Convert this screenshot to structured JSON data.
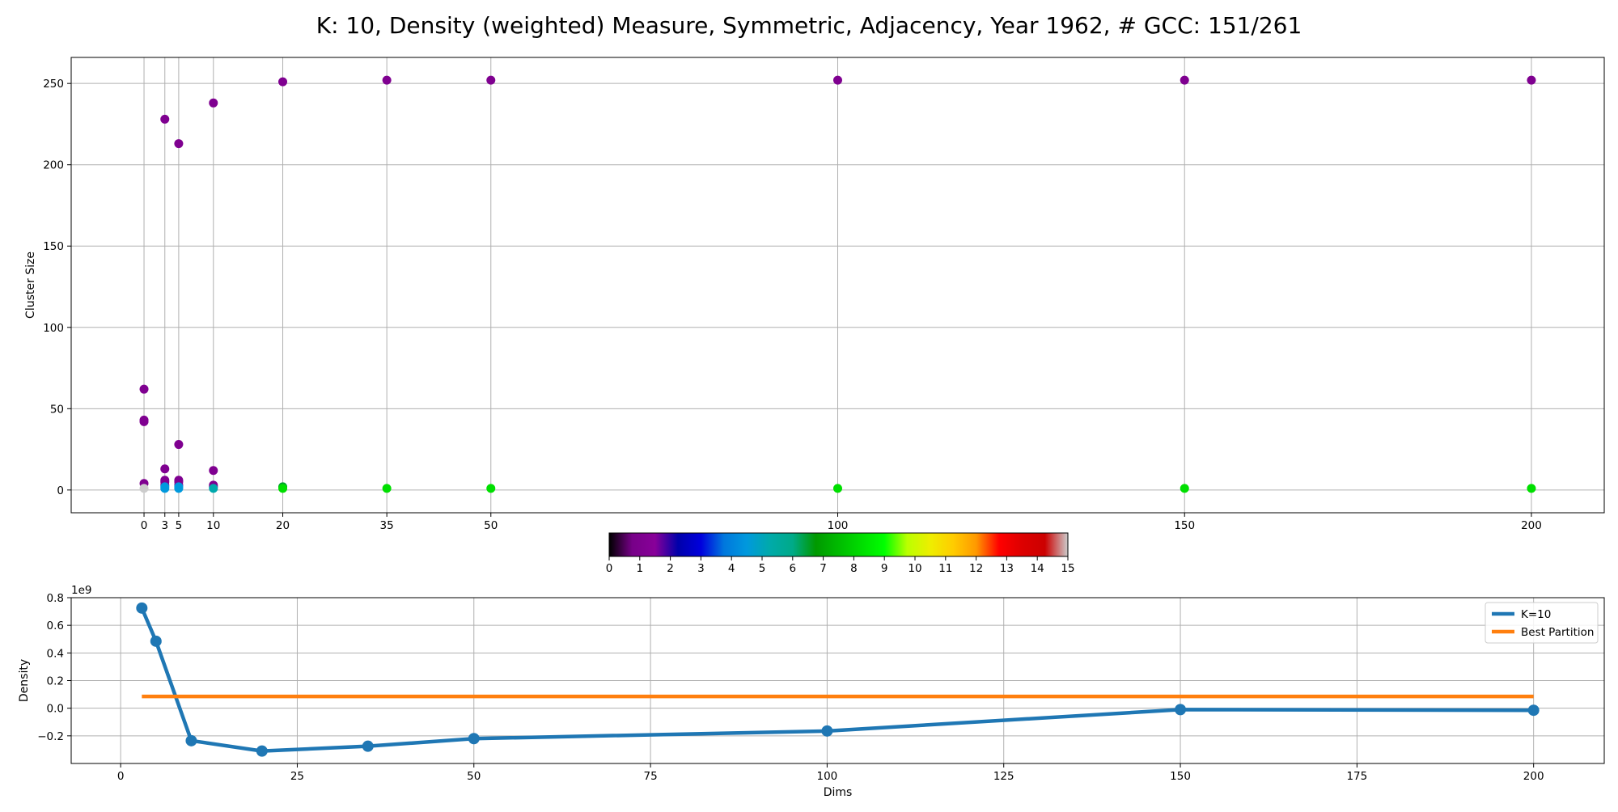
{
  "figure": {
    "title": "K: 10, Density (weighted) Measure, Symmetric, Adjacency, Year 1962, # GCC: 151/261"
  },
  "chart_data": [
    {
      "type": "scatter",
      "ylabel": "Cluster Size",
      "xlabel": "",
      "x_positions": [
        0,
        3,
        5,
        10,
        20,
        35,
        50,
        100,
        150,
        200
      ],
      "xticks": [
        "0",
        "3",
        "5",
        "10",
        "20",
        "35",
        "50",
        "100",
        "150",
        "200"
      ],
      "yticks": [
        0,
        50,
        100,
        150,
        200,
        250
      ],
      "ylim": [
        -14,
        266
      ],
      "xlim": [
        -10.5,
        210.5
      ],
      "grid": true,
      "points": [
        {
          "x": 0,
          "y": 62,
          "c": 1.1
        },
        {
          "x": 0,
          "y": 43,
          "c": 1.1
        },
        {
          "x": 0,
          "y": 42,
          "c": 1.1
        },
        {
          "x": 0,
          "y": 4,
          "c": 1.1
        },
        {
          "x": 0,
          "y": 1,
          "c": 15
        },
        {
          "x": 3,
          "y": 228,
          "c": 1.1
        },
        {
          "x": 3,
          "y": 13,
          "c": 1.1
        },
        {
          "x": 3,
          "y": 6,
          "c": 1.1
        },
        {
          "x": 3,
          "y": 5,
          "c": 1.1
        },
        {
          "x": 3,
          "y": 3,
          "c": 1.1
        },
        {
          "x": 3,
          "y": 2,
          "c": 4.5
        },
        {
          "x": 3,
          "y": 1,
          "c": 4.5
        },
        {
          "x": 5,
          "y": 213,
          "c": 1.1
        },
        {
          "x": 5,
          "y": 28,
          "c": 1.1
        },
        {
          "x": 5,
          "y": 6,
          "c": 1.1
        },
        {
          "x": 5,
          "y": 5,
          "c": 1.1
        },
        {
          "x": 5,
          "y": 3,
          "c": 1.1
        },
        {
          "x": 5,
          "y": 2,
          "c": 4.5
        },
        {
          "x": 5,
          "y": 1,
          "c": 4.5
        },
        {
          "x": 10,
          "y": 238,
          "c": 1.1
        },
        {
          "x": 10,
          "y": 12,
          "c": 1.1
        },
        {
          "x": 10,
          "y": 3,
          "c": 1.1
        },
        {
          "x": 10,
          "y": 2,
          "c": 1.1
        },
        {
          "x": 10,
          "y": 1,
          "c": 5.2
        },
        {
          "x": 20,
          "y": 251,
          "c": 1.1
        },
        {
          "x": 20,
          "y": 2,
          "c": 6.5
        },
        {
          "x": 20,
          "y": 1,
          "c": 8.3
        },
        {
          "x": 35,
          "y": 252,
          "c": 1.1
        },
        {
          "x": 35,
          "y": 1,
          "c": 8.3
        },
        {
          "x": 50,
          "y": 252,
          "c": 1.1
        },
        {
          "x": 50,
          "y": 1,
          "c": 8.3
        },
        {
          "x": 100,
          "y": 252,
          "c": 1.1
        },
        {
          "x": 100,
          "y": 1,
          "c": 8.3
        },
        {
          "x": 150,
          "y": 252,
          "c": 1.1
        },
        {
          "x": 150,
          "y": 1,
          "c": 8.3
        },
        {
          "x": 200,
          "y": 252,
          "c": 1.1
        },
        {
          "x": 200,
          "y": 1,
          "c": 8.3
        }
      ]
    },
    {
      "type": "colorbar",
      "colormap": "nipy_spectral",
      "range": [
        0,
        15
      ],
      "ticks": [
        "0",
        "1",
        "2",
        "3",
        "4",
        "5",
        "6",
        "7",
        "8",
        "9",
        "10",
        "11",
        "12",
        "13",
        "14",
        "15"
      ]
    },
    {
      "type": "line",
      "xlabel": "Dims",
      "ylabel": "Density",
      "offset_label": "1e9",
      "xlim": [
        -7,
        210
      ],
      "ylim": [
        -0.4,
        0.8
      ],
      "xticks": [
        "0",
        "25",
        "50",
        "75",
        "100",
        "125",
        "150",
        "175",
        "200"
      ],
      "yticks": [
        "−0.2",
        "0.0",
        "0.2",
        "0.4",
        "0.6",
        "0.8"
      ],
      "grid": true,
      "legend_position": "upper right",
      "series": [
        {
          "name": "K=10",
          "color": "#1f77b4",
          "markers": true,
          "x": [
            3,
            5,
            10,
            20,
            35,
            50,
            100,
            150,
            200
          ],
          "y": [
            0.725,
            0.485,
            -0.235,
            -0.31,
            -0.275,
            -0.22,
            -0.165,
            -0.01,
            -0.015
          ]
        },
        {
          "name": "Best Partition",
          "color": "#ff7f0e",
          "markers": false,
          "x": [
            3,
            200
          ],
          "y": [
            0.085,
            0.085
          ]
        }
      ]
    }
  ]
}
